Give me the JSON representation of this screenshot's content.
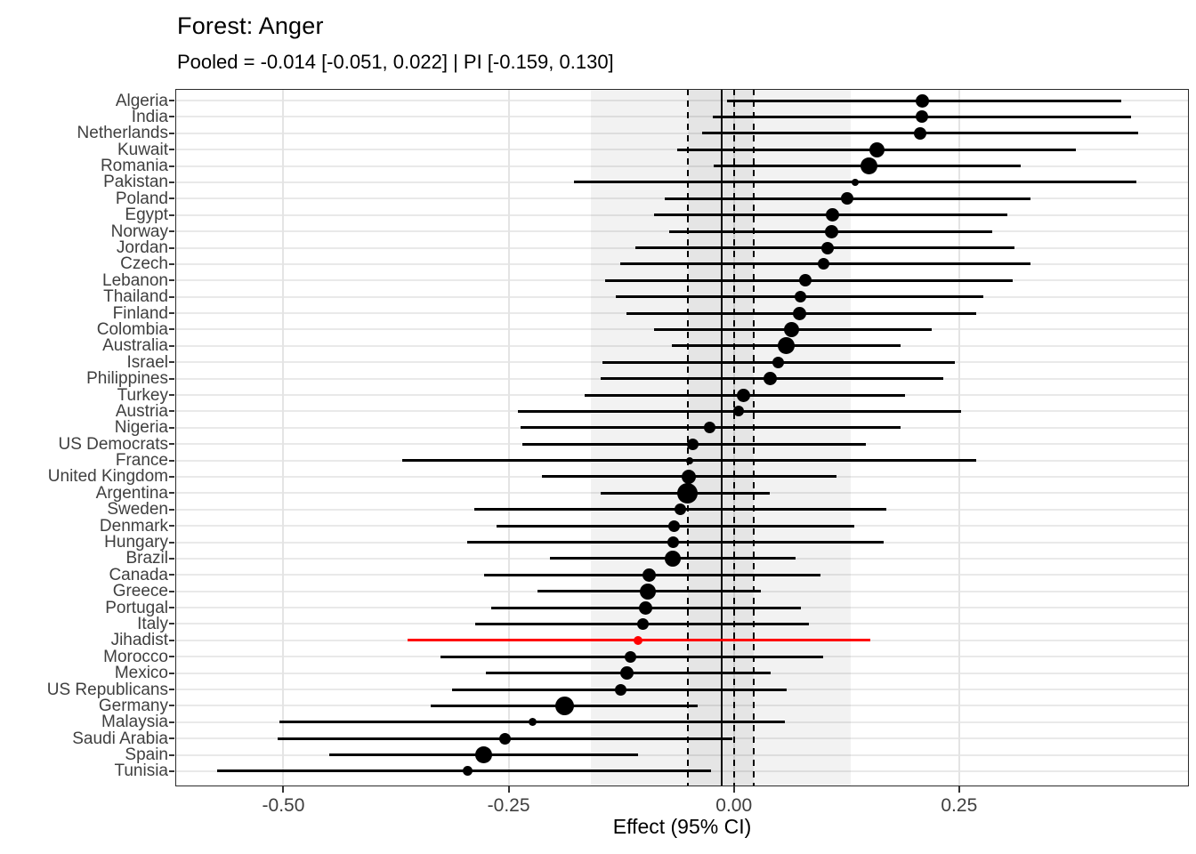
{
  "title": "Forest: Anger",
  "subtitle": "Pooled = -0.014 [-0.051, 0.022] | PI [-0.159, 0.130]",
  "colors": {
    "bar": "#000000",
    "highlight": "#FF0000",
    "grid": "#e8e8e8",
    "band": "rgba(0,0,0,0.05)",
    "border": "#2b2b2b",
    "text": "#3f3f3f"
  },
  "chart_data": {
    "type": "forest",
    "title": "Forest: Anger",
    "subtitle": "Pooled = -0.014 [-0.051, 0.022] | PI [-0.159, 0.130]",
    "xlabel": "Effect (95% CI)",
    "xlim": [
      -0.62,
      0.505
    ],
    "x_ticks": [
      -0.5,
      -0.25,
      0.0,
      0.25
    ],
    "x_tick_labels": [
      "-0.50",
      "-0.25",
      "0.00",
      "0.25"
    ],
    "grid": true,
    "reference_line": 0,
    "pooled": {
      "estimate": -0.014,
      "ci": [
        -0.051,
        0.022
      ],
      "pi": [
        -0.159,
        0.13
      ]
    },
    "studies": [
      {
        "label": "Algeria",
        "effect": 0.209,
        "lo": -0.008,
        "hi": 0.43,
        "size": 15
      },
      {
        "label": "India",
        "effect": 0.209,
        "lo": -0.023,
        "hi": 0.441,
        "size": 14
      },
      {
        "label": "Netherlands",
        "effect": 0.207,
        "lo": -0.035,
        "hi": 0.449,
        "size": 14
      },
      {
        "label": "Kuwait",
        "effect": 0.159,
        "lo": -0.063,
        "hi": 0.38,
        "size": 17
      },
      {
        "label": "Romania",
        "effect": 0.15,
        "lo": -0.022,
        "hi": 0.318,
        "size": 19
      },
      {
        "label": "Pakistan",
        "effect": 0.135,
        "lo": -0.178,
        "hi": 0.447,
        "size": 8
      },
      {
        "label": "Poland",
        "effect": 0.126,
        "lo": -0.077,
        "hi": 0.329,
        "size": 14
      },
      {
        "label": "Egypt",
        "effect": 0.109,
        "lo": -0.089,
        "hi": 0.304,
        "size": 15
      },
      {
        "label": "Norway",
        "effect": 0.108,
        "lo": -0.072,
        "hi": 0.287,
        "size": 15
      },
      {
        "label": "Jordan",
        "effect": 0.104,
        "lo": -0.109,
        "hi": 0.311,
        "size": 14
      },
      {
        "label": "Czech",
        "effect": 0.1,
        "lo": -0.126,
        "hi": 0.329,
        "size": 13
      },
      {
        "label": "Lebanon",
        "effect": 0.079,
        "lo": -0.143,
        "hi": 0.309,
        "size": 14
      },
      {
        "label": "Thailand",
        "effect": 0.074,
        "lo": -0.131,
        "hi": 0.277,
        "size": 13
      },
      {
        "label": "Finland",
        "effect": 0.073,
        "lo": -0.119,
        "hi": 0.269,
        "size": 15
      },
      {
        "label": "Colombia",
        "effect": 0.064,
        "lo": -0.089,
        "hi": 0.22,
        "size": 17
      },
      {
        "label": "Australia",
        "effect": 0.058,
        "lo": -0.069,
        "hi": 0.185,
        "size": 19
      },
      {
        "label": "Israel",
        "effect": 0.049,
        "lo": -0.146,
        "hi": 0.245,
        "size": 13
      },
      {
        "label": "Philippines",
        "effect": 0.04,
        "lo": -0.148,
        "hi": 0.232,
        "size": 15
      },
      {
        "label": "Turkey",
        "effect": 0.011,
        "lo": -0.166,
        "hi": 0.19,
        "size": 15
      },
      {
        "label": "Austria",
        "effect": 0.005,
        "lo": -0.24,
        "hi": 0.252,
        "size": 12
      },
      {
        "label": "Nigeria",
        "effect": -0.027,
        "lo": -0.237,
        "hi": 0.185,
        "size": 13
      },
      {
        "label": "US Democrats",
        "effect": -0.046,
        "lo": -0.235,
        "hi": 0.146,
        "size": 13
      },
      {
        "label": "France",
        "effect": -0.049,
        "lo": -0.368,
        "hi": 0.269,
        "size": 8
      },
      {
        "label": "United Kingdom",
        "effect": -0.05,
        "lo": -0.213,
        "hi": 0.114,
        "size": 16
      },
      {
        "label": "Argentina",
        "effect": -0.052,
        "lo": -0.148,
        "hi": 0.04,
        "size": 23
      },
      {
        "label": "Sweden",
        "effect": -0.059,
        "lo": -0.288,
        "hi": 0.169,
        "size": 13
      },
      {
        "label": "Denmark",
        "effect": -0.066,
        "lo": -0.263,
        "hi": 0.134,
        "size": 13
      },
      {
        "label": "Hungary",
        "effect": -0.067,
        "lo": -0.296,
        "hi": 0.166,
        "size": 13
      },
      {
        "label": "Brazil",
        "effect": -0.068,
        "lo": -0.204,
        "hi": 0.068,
        "size": 18
      },
      {
        "label": "Canada",
        "effect": -0.094,
        "lo": -0.277,
        "hi": 0.096,
        "size": 15
      },
      {
        "label": "Greece",
        "effect": -0.096,
        "lo": -0.218,
        "hi": 0.03,
        "size": 18
      },
      {
        "label": "Portugal",
        "effect": -0.098,
        "lo": -0.269,
        "hi": 0.074,
        "size": 15
      },
      {
        "label": "Italy",
        "effect": -0.101,
        "lo": -0.287,
        "hi": 0.083,
        "size": 13
      },
      {
        "label": "Jihadist",
        "effect": -0.106,
        "lo": -0.362,
        "hi": 0.151,
        "size": 10,
        "color": "#FF0000"
      },
      {
        "label": "Morocco",
        "effect": -0.115,
        "lo": -0.326,
        "hi": 0.099,
        "size": 13
      },
      {
        "label": "Mexico",
        "effect": -0.119,
        "lo": -0.275,
        "hi": 0.041,
        "size": 15
      },
      {
        "label": "US Republicans",
        "effect": -0.126,
        "lo": -0.313,
        "hi": 0.059,
        "size": 13
      },
      {
        "label": "Germany",
        "effect": -0.188,
        "lo": -0.337,
        "hi": -0.04,
        "size": 21
      },
      {
        "label": "Malaysia",
        "effect": -0.223,
        "lo": -0.504,
        "hi": 0.057,
        "size": 9
      },
      {
        "label": "Saudi Arabia",
        "effect": -0.254,
        "lo": -0.506,
        "hi": -0.002,
        "size": 13
      },
      {
        "label": "Spain",
        "effect": -0.278,
        "lo": -0.449,
        "hi": -0.106,
        "size": 19
      },
      {
        "label": "Tunisia",
        "effect": -0.296,
        "lo": -0.574,
        "hi": -0.025,
        "size": 11
      }
    ]
  }
}
